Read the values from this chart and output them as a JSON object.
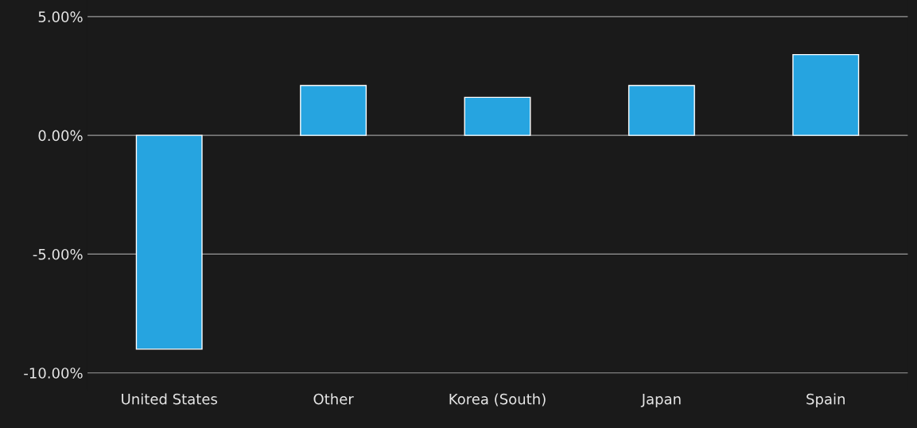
{
  "chart_data": {
    "type": "bar",
    "categories": [
      "United States",
      "Other",
      "Korea (South)",
      "Japan",
      "Spain"
    ],
    "values": [
      -9.0,
      2.1,
      1.6,
      2.1,
      3.4
    ],
    "color": "#26a4e0",
    "ylim": [
      -10.7,
      5.7
    ],
    "yticks": [
      {
        "value": 5,
        "label": "5.00%"
      },
      {
        "value": 0,
        "label": "0.00%"
      },
      {
        "value": -5,
        "label": "-5.00%"
      },
      {
        "value": -10,
        "label": "-10.00%"
      }
    ],
    "grid": "y"
  }
}
